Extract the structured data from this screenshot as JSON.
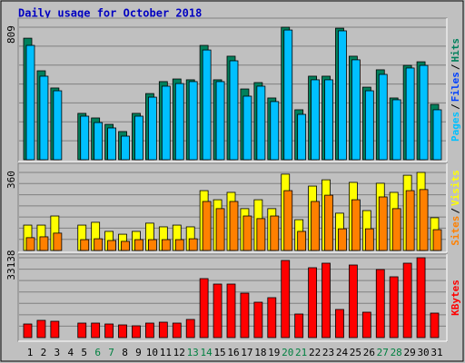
{
  "title": "Daily usage for October 2018",
  "chart_data": [
    {
      "type": "bar",
      "ylim": [
        0,
        809
      ],
      "yticks": [
        809
      ],
      "legend": [
        {
          "name": "Pages",
          "color": "#00c0ff"
        },
        {
          "name": "Files",
          "color": "#0040ff"
        },
        {
          "name": "Hits",
          "color": "#00805c"
        }
      ],
      "legend_separator": "/",
      "series": [
        {
          "name": "Hits",
          "color": "#00805c",
          "values": [
            742,
            543,
            438,
            0,
            283,
            255,
            216,
            172,
            283,
            404,
            477,
            493,
            488,
            698,
            488,
            632,
            432,
            471,
            377,
            809,
            305,
            510,
            510,
            803,
            632,
            443,
            549,
            377,
            576,
            598,
            338
          ]
        },
        {
          "name": "Pages",
          "color": "#00c0ff",
          "values": [
            698,
            510,
            421,
            0,
            266,
            227,
            194,
            144,
            266,
            382,
            449,
            465,
            477,
            670,
            477,
            604,
            388,
            449,
            355,
            792,
            277,
            488,
            488,
            787,
            610,
            421,
            521,
            366,
            560,
            576,
            305
          ]
        }
      ]
    },
    {
      "type": "bar",
      "ylim": [
        0,
        360
      ],
      "yticks": [
        360
      ],
      "legend": [
        {
          "name": "Sites",
          "color": "#ff8000"
        },
        {
          "name": "Visits",
          "color": "#ffff00"
        }
      ],
      "legend_separator": "/",
      "series": [
        {
          "name": "Visits",
          "color": "#ffff00",
          "values": [
            117,
            117,
            159,
            0,
            117,
            130,
            88,
            75,
            88,
            126,
            109,
            117,
            109,
            276,
            234,
            268,
            193,
            234,
            193,
            352,
            142,
            297,
            326,
            172,
            314,
            184,
            310,
            268,
            347,
            360,
            151
          ]
        },
        {
          "name": "Sites",
          "color": "#ff8000",
          "values": [
            59,
            63,
            80,
            0,
            50,
            54,
            46,
            42,
            50,
            50,
            50,
            50,
            54,
            226,
            193,
            226,
            159,
            147,
            159,
            276,
            88,
            226,
            255,
            100,
            234,
            100,
            247,
            193,
            276,
            281,
            96
          ]
        }
      ]
    },
    {
      "type": "bar",
      "ylim": [
        0,
        33138
      ],
      "yticks": [
        33138
      ],
      "legend": [
        {
          "name": "KBytes",
          "color": "#ff0000"
        }
      ],
      "categories": [
        "1",
        "2",
        "3",
        "4",
        "5",
        "6",
        "7",
        "8",
        "9",
        "10",
        "11",
        "12",
        "13",
        "14",
        "15",
        "16",
        "17",
        "18",
        "19",
        "20",
        "21",
        "22",
        "23",
        "24",
        "25",
        "26",
        "27",
        "28",
        "29",
        "30",
        "31"
      ],
      "category_colors": [
        "#000000",
        "#000000",
        "#000000",
        "#000000",
        "#000000",
        "#008040",
        "#008040",
        "#000000",
        "#000000",
        "#000000",
        "#000000",
        "#000000",
        "#008040",
        "#008040",
        "#000000",
        "#000000",
        "#000000",
        "#000000",
        "#000000",
        "#008040",
        "#008040",
        "#000000",
        "#000000",
        "#000000",
        "#000000",
        "#000000",
        "#008040",
        "#008040",
        "#000000",
        "#000000",
        "#000000"
      ],
      "series": [
        {
          "name": "KBytes",
          "color": "#ff0000",
          "values": [
            5648,
            7155,
            6778,
            0,
            6024,
            6024,
            5648,
            5271,
            4895,
            6024,
            6401,
            6024,
            7531,
            24476,
            22216,
            22216,
            18451,
            14685,
            16568,
            32007,
            9790,
            28995,
            30877,
            11672,
            30124,
            10543,
            28242,
            25230,
            30877,
            33138,
            10167
          ]
        }
      ]
    }
  ]
}
